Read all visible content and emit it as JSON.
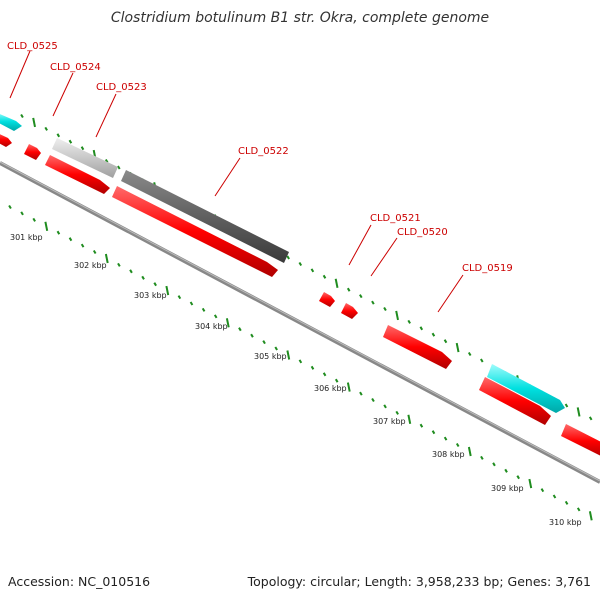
{
  "title": "Clostridium botulinum B1 str. Okra, complete genome",
  "footer": {
    "accession": "Accession: NC_010516",
    "summary": "Topology: circular; Length: 3,958,233 bp; Genes: 3,761"
  },
  "gene_labels": [
    "CLD_0525",
    "CLD_0524",
    "CLD_0523",
    "CLD_0522",
    "CLD_0521",
    "CLD_0520",
    "CLD_0519"
  ],
  "kbp_labels": [
    "301 kbp",
    "302 kbp",
    "303 kbp",
    "304 kbp",
    "305 kbp",
    "306 kbp",
    "307 kbp",
    "308 kbp",
    "309 kbp",
    "310 kbp"
  ],
  "colors": {
    "cds": "#ff0000",
    "trna": "#00e0e0",
    "light_gray_feature": "#c8c8c8",
    "dark_gray_feature": "#606060",
    "backbone": "#888888",
    "tick_green": "#1f8c1f",
    "label_red": "#cc0000"
  }
}
